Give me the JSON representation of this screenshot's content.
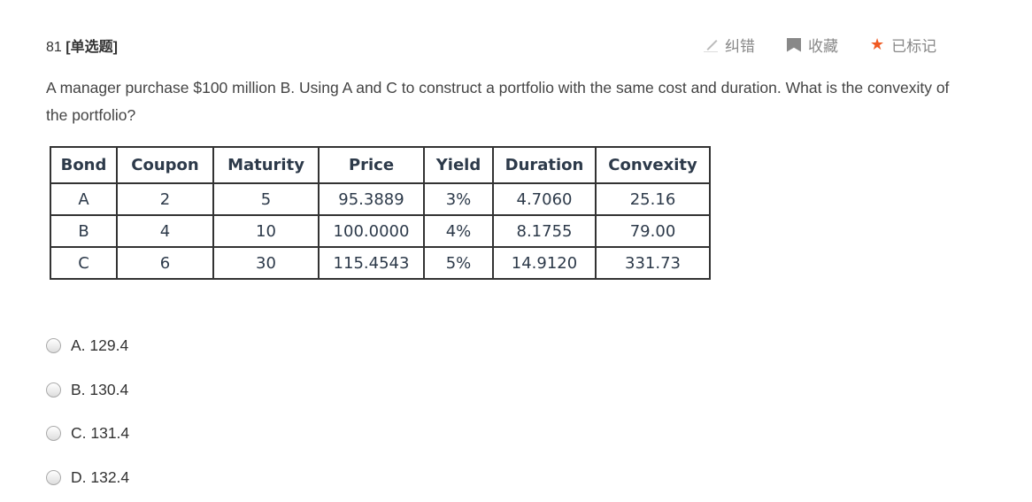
{
  "question": {
    "number": "81",
    "type": "[单选题]",
    "text": "A manager purchase $100 million B. Using A and C to construct a portfolio with the same cost and duration. What is the convexity of the portfolio?"
  },
  "tools": [
    {
      "label": "纠错",
      "icon": "pencil-icon"
    },
    {
      "label": "收藏",
      "icon": "bookmark-icon"
    },
    {
      "label": "已标记",
      "icon": "star-icon",
      "color": "#f05a22"
    }
  ],
  "table": {
    "headers": [
      "Bond",
      "Coupon",
      "Maturity",
      "Price",
      "Yield",
      "Duration",
      "Convexity"
    ],
    "rows": [
      [
        "A",
        "2",
        "5",
        "95.3889",
        "3%",
        "4.7060",
        "25.16"
      ],
      [
        "B",
        "4",
        "10",
        "100.0000",
        "4%",
        "8.1755",
        "79.00"
      ],
      [
        "C",
        "6",
        "30",
        "115.4543",
        "5%",
        "14.9120",
        "331.73"
      ]
    ]
  },
  "options": [
    "A. 129.4",
    "B. 130.4",
    "C. 131.4",
    "D. 132.4"
  ]
}
